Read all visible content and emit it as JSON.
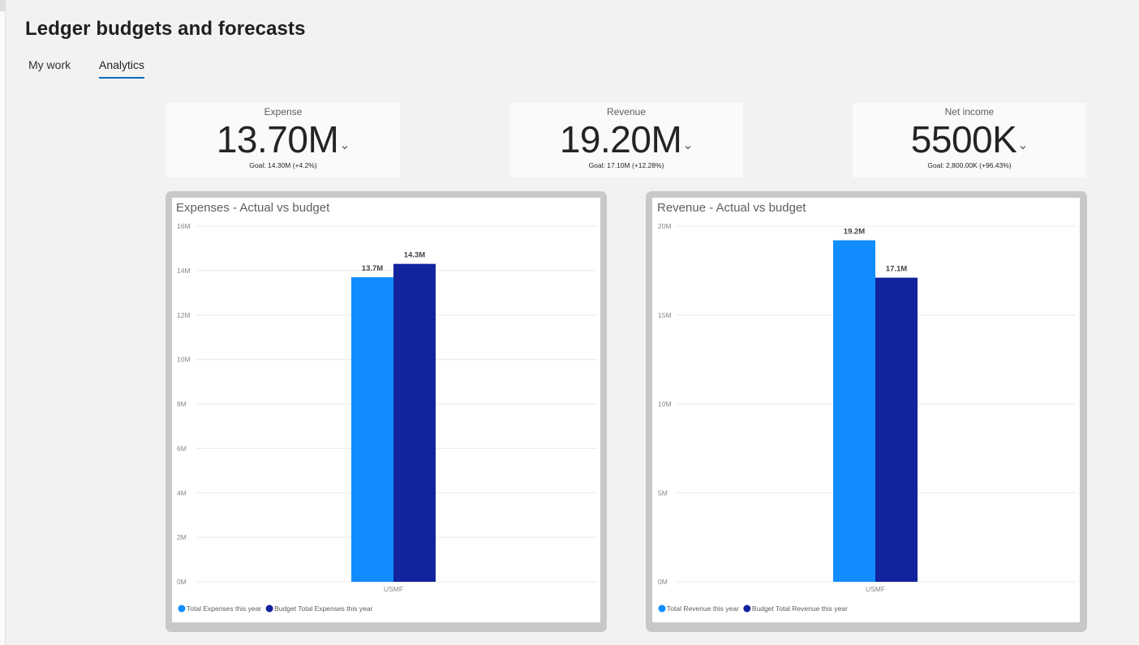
{
  "page": {
    "title": "Ledger budgets and forecasts"
  },
  "tabs": [
    {
      "label": "My work",
      "active": false
    },
    {
      "label": "Analytics",
      "active": true
    }
  ],
  "kpis": [
    {
      "title": "Expense",
      "value": "13.70M",
      "goal": "Goal: 14.30M (+4.2%)",
      "trend_icon": "chevron-down-icon"
    },
    {
      "title": "Revenue",
      "value": "19.20M",
      "goal": "Goal: 17.10M (+12.28%)",
      "trend_icon": "chevron-down-icon"
    },
    {
      "title": "Net income",
      "value": "5500K",
      "goal": "Goal: 2,800.00K (+96.43%)",
      "trend_icon": "chevron-down-icon"
    }
  ],
  "colors": {
    "actual": "#118dff",
    "budget": "#12239e"
  },
  "chart_data": [
    {
      "type": "bar",
      "title": "Expenses - Actual vs budget",
      "categories": [
        "USMF"
      ],
      "series": [
        {
          "name": "Total Expenses this year",
          "values": [
            13.7
          ],
          "label": "13.7M"
        },
        {
          "name": "Budget Total Expenses this year",
          "values": [
            14.3
          ],
          "label": "14.3M"
        }
      ],
      "ylim": [
        0,
        16
      ],
      "yticks": [
        0,
        2,
        4,
        6,
        8,
        10,
        12,
        14,
        16
      ],
      "ytick_labels": [
        "0M",
        "2M",
        "4M",
        "6M",
        "8M",
        "10M",
        "12M",
        "14M",
        "16M"
      ],
      "grid": true,
      "legend": "bottom-left"
    },
    {
      "type": "bar",
      "title": "Revenue - Actual vs budget",
      "categories": [
        "USMF"
      ],
      "series": [
        {
          "name": "Total Revenue this year",
          "values": [
            19.2
          ],
          "label": "19.2M"
        },
        {
          "name": "Budget Total Revenue this year",
          "values": [
            17.1
          ],
          "label": "17.1M"
        }
      ],
      "ylim": [
        0,
        20
      ],
      "yticks": [
        0,
        5,
        10,
        15,
        20
      ],
      "ytick_labels": [
        "0M",
        "5M",
        "10M",
        "15M",
        "20M"
      ],
      "grid": true,
      "legend": "bottom-left"
    }
  ]
}
